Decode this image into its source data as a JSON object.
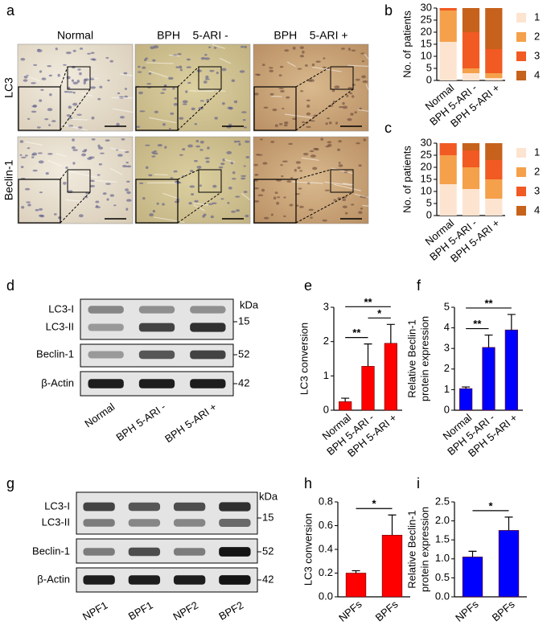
{
  "panel_labels": [
    "a",
    "b",
    "c",
    "d",
    "e",
    "f",
    "g",
    "h",
    "i"
  ],
  "micrographs": {
    "columns": [
      "Normal",
      "BPH    5-ARI -",
      "BPH    5-ARI +"
    ],
    "rows": [
      "LC3",
      "Beclin-1"
    ]
  },
  "blots": [
    {
      "rows": [
        "LC3-I",
        "LC3-II",
        "Beclin-1",
        "β-Actin"
      ],
      "unit": "kDa",
      "markers": [
        "15",
        "52",
        "42"
      ],
      "lanes": [
        "Normal",
        "BPH 5-ARI -",
        "BPH 5-ARI +"
      ]
    },
    {
      "rows": [
        "LC3-I",
        "LC3-II",
        "Beclin-1",
        "β-Actin"
      ],
      "unit": "kDa",
      "markers": [
        "15",
        "52",
        "42"
      ],
      "lanes": [
        "NPF1",
        "BPF1",
        "NPF2",
        "BPF2"
      ]
    }
  ],
  "chart_data": [
    {
      "type": "stacked_bar",
      "ylabel": [
        "No. of patients"
      ],
      "categories": [
        "Normal",
        "BPH 5-ARI -",
        "BPH 5-ARI +"
      ],
      "ylim": [
        0,
        30
      ],
      "yticks": [
        0,
        5,
        10,
        15,
        20,
        25,
        30
      ],
      "series": [
        {
          "name": "1",
          "color": "#fde4d0",
          "values": [
            16,
            3,
            1
          ]
        },
        {
          "name": "2",
          "color": "#f5a04b",
          "values": [
            13,
            2,
            2
          ]
        },
        {
          "name": "3",
          "color": "#f15a22",
          "values": [
            1,
            15,
            10
          ]
        },
        {
          "name": "4",
          "color": "#c6621b",
          "values": [
            0,
            10,
            17
          ]
        }
      ]
    },
    {
      "type": "stacked_bar",
      "ylabel": [
        "No. of patients"
      ],
      "categories": [
        "Normal",
        "BPH 5-ARI -",
        "BPH 5-ARI +"
      ],
      "ylim": [
        0,
        30
      ],
      "yticks": [
        0,
        5,
        10,
        15,
        20,
        25,
        30
      ],
      "series": [
        {
          "name": "1",
          "color": "#fde4d0",
          "values": [
            13,
            11,
            7
          ]
        },
        {
          "name": "2",
          "color": "#f5a04b",
          "values": [
            12,
            9,
            8
          ]
        },
        {
          "name": "3",
          "color": "#f15a22",
          "values": [
            5,
            7,
            8
          ]
        },
        {
          "name": "4",
          "color": "#c6621b",
          "values": [
            0,
            3,
            7
          ]
        }
      ]
    },
    {
      "type": "bar",
      "ylabel": [
        "LC3 conversion"
      ],
      "color": "#ff0000",
      "categories": [
        "Normal",
        "BPH 5-ARI -",
        "BPH 5-ARI +"
      ],
      "values": [
        0.25,
        1.28,
        1.95
      ],
      "errors": [
        0.1,
        0.65,
        0.55
      ],
      "ylim": [
        0,
        3
      ],
      "yticks": [
        0,
        1,
        2,
        3
      ],
      "significance": [
        {
          "label": "**",
          "pair": [
            0,
            1
          ]
        },
        {
          "label": "*",
          "pair": [
            1,
            2
          ]
        },
        {
          "label": "**",
          "pair": [
            0,
            2
          ]
        }
      ]
    },
    {
      "type": "bar",
      "ylabel": [
        "Relative Beclin-1",
        "protein expression"
      ],
      "color": "#0000ff",
      "categories": [
        "Normal",
        "BPH 5-ARI -",
        "BPH 5-ARI +"
      ],
      "values": [
        1.05,
        3.05,
        3.9
      ],
      "errors": [
        0.08,
        0.6,
        0.75
      ],
      "ylim": [
        0,
        5
      ],
      "yticks": [
        0,
        1,
        2,
        3,
        4,
        5
      ],
      "significance": [
        {
          "label": "**",
          "pair": [
            0,
            1
          ]
        },
        {
          "label": "**",
          "pair": [
            0,
            2
          ]
        }
      ]
    },
    {
      "type": "bar",
      "ylabel": [
        "LC3 conversion"
      ],
      "color": "#ff0000",
      "categories": [
        "NPFs",
        "BPFs"
      ],
      "values": [
        0.2,
        0.52
      ],
      "errors": [
        0.02,
        0.17
      ],
      "ylim": [
        0,
        0.8
      ],
      "yticks": [
        {
          "value": 0,
          "label": "0.0"
        },
        0.2,
        0.4,
        0.6,
        0.8
      ],
      "significance": [
        {
          "label": "*",
          "pair": [
            0,
            1
          ]
        }
      ]
    },
    {
      "type": "bar",
      "ylabel": [
        "Relative Beclin-1",
        "protein expression"
      ],
      "color": "#0000ff",
      "categories": [
        "NPFs",
        "BPFs"
      ],
      "values": [
        1.05,
        1.75
      ],
      "errors": [
        0.15,
        0.35
      ],
      "ylim": [
        0,
        2.5
      ],
      "yticks": [
        {
          "value": 0,
          "label": "0.0"
        },
        0.5,
        {
          "value": 1,
          "label": "1.0"
        },
        1.5,
        {
          "value": 2,
          "label": "2.0"
        },
        2.5
      ],
      "significance": [
        {
          "label": "*",
          "pair": [
            0,
            1
          ]
        }
      ]
    }
  ]
}
